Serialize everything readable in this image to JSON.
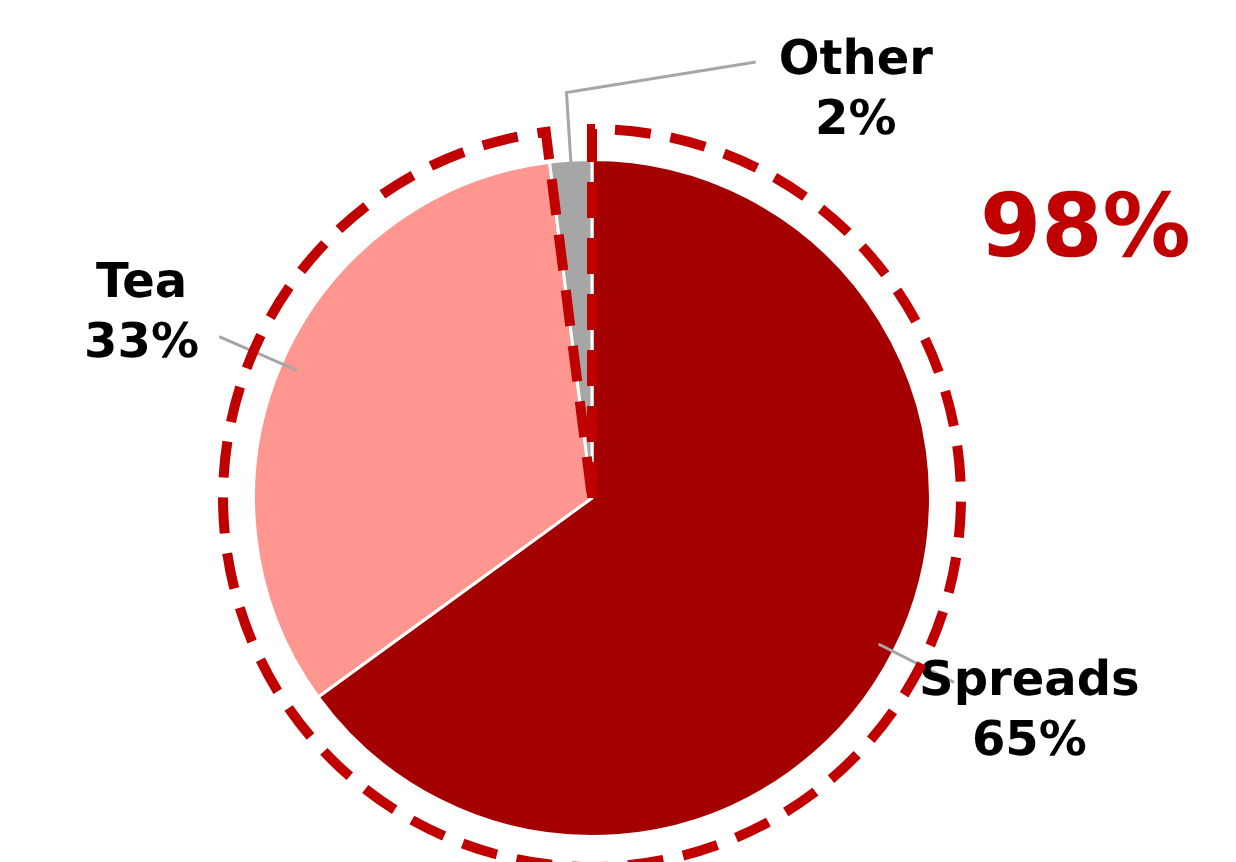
{
  "chart_data": {
    "type": "pie",
    "categories": [
      "Spreads",
      "Tea",
      "Other"
    ],
    "values": [
      65,
      33,
      2
    ],
    "colors": [
      "#a50000",
      "#ff9690",
      "#a6a6a6"
    ],
    "value_labels": [
      "65%",
      "33%",
      "2%"
    ],
    "legend": false,
    "annotations": [
      "98%"
    ]
  }
}
